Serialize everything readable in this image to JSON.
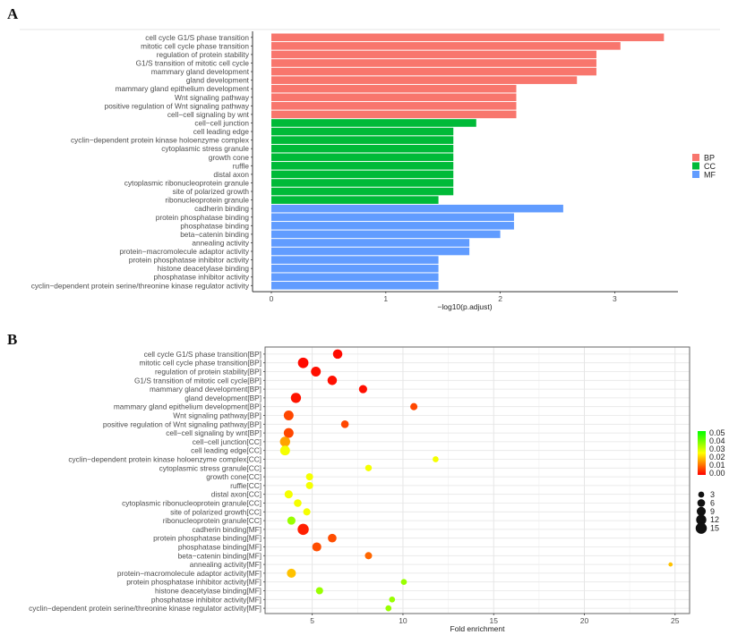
{
  "panels": {
    "a_label": "A",
    "b_label": "B"
  },
  "chart_data": [
    {
      "type": "bar",
      "orientation": "horizontal",
      "title": "",
      "xlabel": "-log10(p.adjust)",
      "ylabel": "",
      "xlim": [
        0,
        3.55
      ],
      "xticks": [
        0,
        1,
        2,
        3
      ],
      "grid": false,
      "legend": {
        "placement": "right",
        "entries": [
          {
            "name": "BP",
            "color": "#F8766D"
          },
          {
            "name": "CC",
            "color": "#00BA38"
          },
          {
            "name": "MF",
            "color": "#619CFF"
          }
        ]
      },
      "categories": [
        "cell cycle G1/S phase transition",
        "mitotic cell cycle phase transition",
        "regulation of protein stability",
        "G1/S transition of mitotic cell cycle",
        "mammary gland development",
        "gland development",
        "mammary gland epithelium development",
        "Wnt signaling pathway",
        "positive regulation of Wnt signaling pathway",
        "cell−cell signaling by wnt",
        "cell−cell junction",
        "cell leading edge",
        "cyclin−dependent protein kinase holoenzyme complex",
        "cytoplasmic stress granule",
        "growth cone",
        "ruffle",
        "distal axon",
        "cytoplasmic ribonucleoprotein granule",
        "site of polarized growth",
        "ribonucleoprotein granule",
        "cadherin binding",
        "protein phosphatase binding",
        "phosphatase binding",
        "beta−catenin binding",
        "annealing activity",
        "protein−macromolecule adaptor activity",
        "protein phosphatase inhibitor activity",
        "histone deacetylase binding",
        "phosphatase inhibitor activity",
        "cyclin−dependent protein serine/threonine kinase regulator activity"
      ],
      "groups": [
        "BP",
        "BP",
        "BP",
        "BP",
        "BP",
        "BP",
        "BP",
        "BP",
        "BP",
        "BP",
        "CC",
        "CC",
        "CC",
        "CC",
        "CC",
        "CC",
        "CC",
        "CC",
        "CC",
        "CC",
        "MF",
        "MF",
        "MF",
        "MF",
        "MF",
        "MF",
        "MF",
        "MF",
        "MF",
        "MF"
      ],
      "values": [
        3.43,
        3.05,
        2.84,
        2.84,
        2.84,
        2.67,
        2.14,
        2.14,
        2.14,
        2.14,
        1.79,
        1.59,
        1.59,
        1.59,
        1.59,
        1.59,
        1.59,
        1.59,
        1.59,
        1.46,
        2.55,
        2.12,
        2.12,
        2.0,
        1.73,
        1.73,
        1.46,
        1.46,
        1.46,
        1.46
      ]
    },
    {
      "type": "scatter",
      "title": "",
      "xlabel": "Fold enrichment",
      "ylabel": "",
      "xlim": [
        2.4,
        25.8
      ],
      "xticks": [
        5,
        10,
        15,
        20,
        25
      ],
      "grid": true,
      "color_legend": {
        "title": "",
        "placement": "right",
        "ticks": [
          "0.05",
          "0.04",
          "0.03",
          "0.02",
          "0.01",
          "0.00"
        ],
        "range": [
          0,
          0.05
        ],
        "low_color": "#FF0000",
        "mid_color": "#FFFF00",
        "high_color": "#00FF00"
      },
      "size_legend": {
        "placement": "right",
        "ticks": [
          "3",
          "6",
          "9",
          "12",
          "15"
        ]
      },
      "categories": [
        "cell cycle G1/S phase transition[BP]",
        "mitotic cell cycle phase transition[BP]",
        "regulation of protein stability[BP]",
        "G1/S transition of mitotic cell cycle[BP]",
        "mammary gland development[BP]",
        "gland development[BP]",
        "mammary gland epithelium development[BP]",
        "Wnt signaling pathway[BP]",
        "positive regulation of Wnt signaling pathway[BP]",
        "cell−cell signaling by wnt[BP]",
        "cell−cell junction[CC]",
        "cell leading edge[CC]",
        "cyclin−dependent protein kinase holoenzyme complex[CC]",
        "cytoplasmic stress granule[CC]",
        "growth cone[CC]",
        "ruffle[CC]",
        "distal axon[CC]",
        "cytoplasmic ribonucleoprotein granule[CC]",
        "site of polarized growth[CC]",
        "ribonucleoprotein granule[CC]",
        "cadherin binding[MF]",
        "protein phosphatase binding[MF]",
        "phosphatase binding[MF]",
        "beta−catenin binding[MF]",
        "annealing activity[MF]",
        "protein−macromolecule adaptor activity[MF]",
        "protein phosphatase inhibitor activity[MF]",
        "histone deacetylase binding[MF]",
        "phosphatase inhibitor activity[MF]",
        "cyclin−dependent protein serine/threonine kinase regulator activity[MF]"
      ],
      "x": [
        6.4,
        4.5,
        5.2,
        6.1,
        7.8,
        4.1,
        10.6,
        3.7,
        6.8,
        3.7,
        3.5,
        3.5,
        11.8,
        8.1,
        4.85,
        4.85,
        3.7,
        4.2,
        4.7,
        3.85,
        4.5,
        6.1,
        5.25,
        8.1,
        24.75,
        3.85,
        10.05,
        5.4,
        9.4,
        9.2
      ],
      "count": [
        10,
        13,
        11,
        10,
        7,
        12,
        5,
        11,
        6,
        11,
        12,
        11,
        3,
        4,
        5,
        5,
        7,
        6,
        5,
        7,
        15,
        8,
        9,
        5,
        1,
        9,
        3,
        5,
        3,
        3
      ],
      "p_adjust": [
        0.001,
        0.001,
        0.0015,
        0.0015,
        0.0015,
        0.002,
        0.007,
        0.007,
        0.007,
        0.007,
        0.016,
        0.026,
        0.026,
        0.026,
        0.026,
        0.026,
        0.026,
        0.026,
        0.026,
        0.035,
        0.003,
        0.0075,
        0.0075,
        0.01,
        0.019,
        0.019,
        0.035,
        0.035,
        0.035,
        0.035
      ]
    }
  ]
}
